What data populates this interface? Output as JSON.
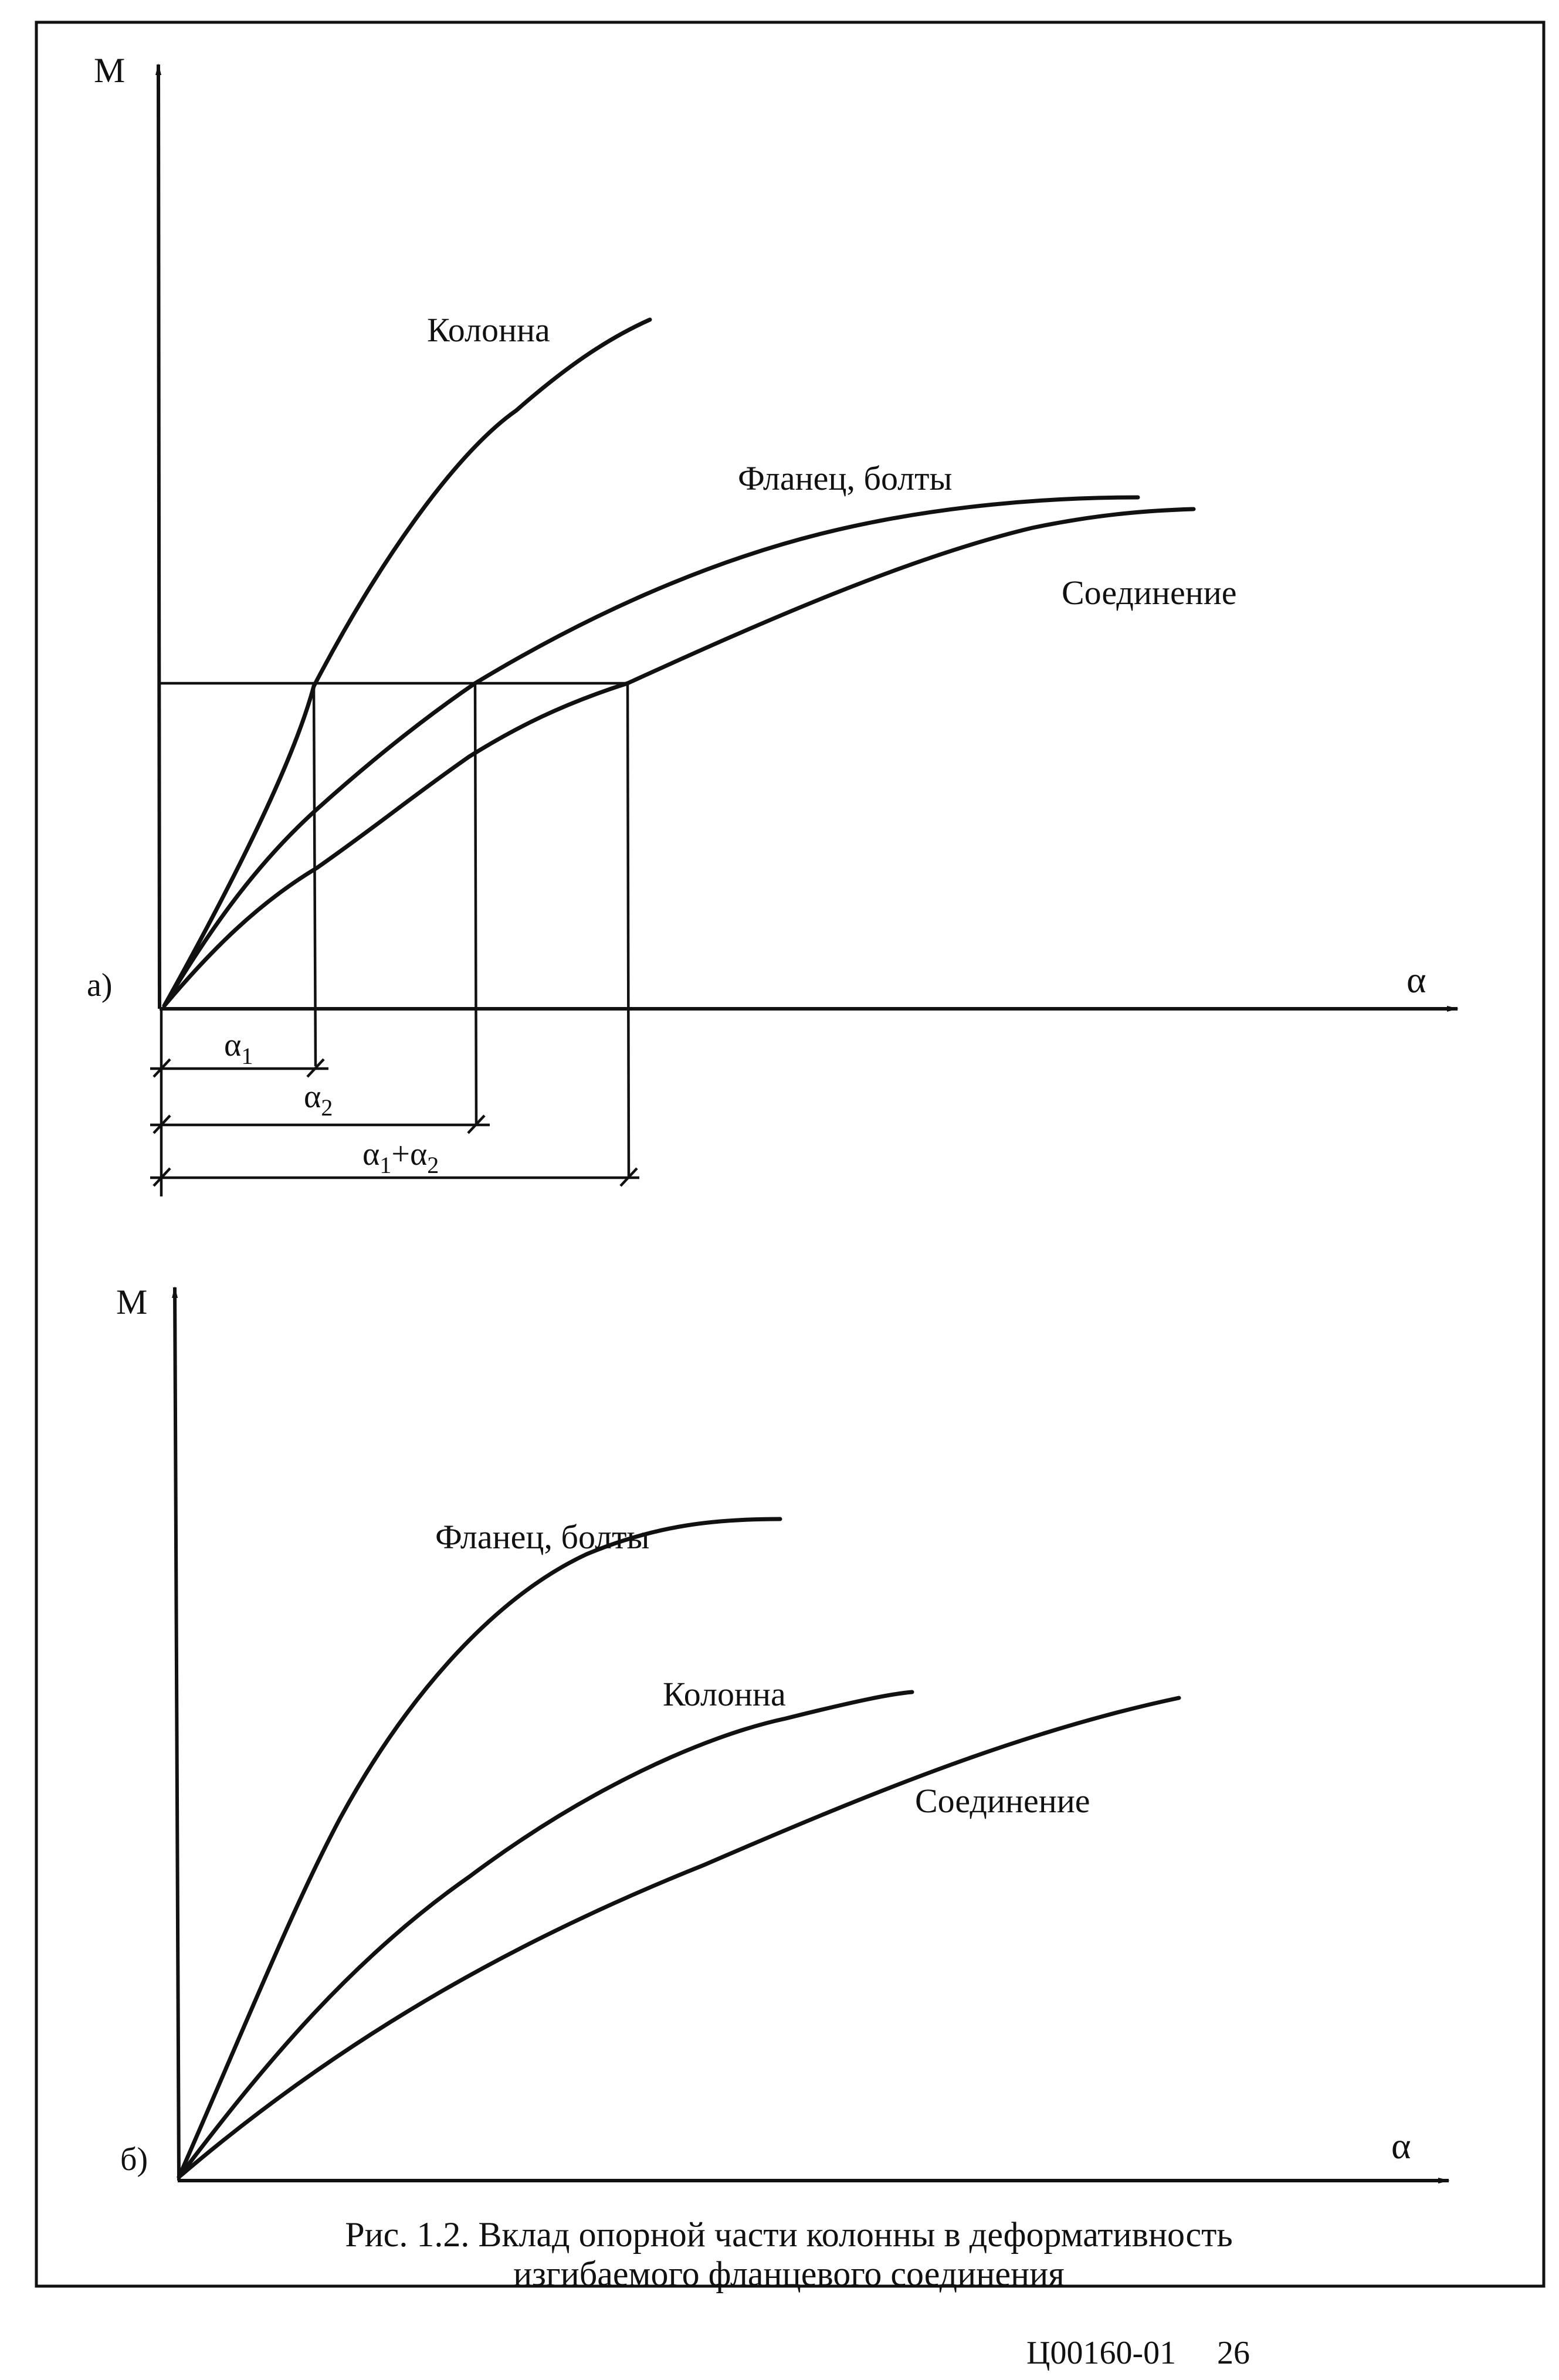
{
  "panel_a": {
    "label": "а)",
    "y_axis_label": "M",
    "x_axis_label": "α",
    "curves": [
      {
        "name": "Колонна"
      },
      {
        "name": "Фланец, болты"
      },
      {
        "name": "Соединение"
      }
    ],
    "dimensions": {
      "alpha1": {
        "base": "α",
        "sub": "1"
      },
      "alpha2": {
        "base": "α",
        "sub": "2"
      },
      "sum": {
        "a": "α",
        "a_sub": "1",
        "plus": "+",
        "b": "α",
        "b_sub": "2"
      }
    }
  },
  "panel_b": {
    "label": "б)",
    "y_axis_label": "M",
    "x_axis_label": "α",
    "curves": [
      {
        "name": "Фланец, болты"
      },
      {
        "name": "Колонна"
      },
      {
        "name": "Соединение"
      }
    ]
  },
  "caption": {
    "line1": "Рис. 1.2. Вклад опорной части колонны в деформативность",
    "line2": "изгибаемого фланцевого соединения"
  },
  "footer": {
    "code": "Ц00160-01",
    "page": "26"
  }
}
